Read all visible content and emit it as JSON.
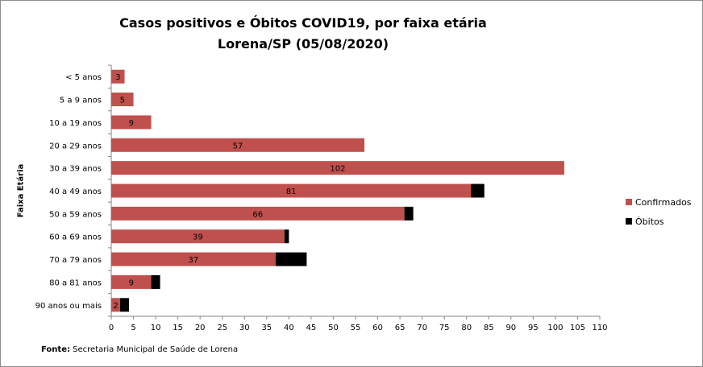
{
  "chart_data": {
    "type": "bar",
    "orientation": "horizontal",
    "stacked": true,
    "title": "Casos positivos  e Óbitos COVID19, por faixa etária",
    "subtitle": "Lorena/SP (05/08/2020)",
    "ylabel": "Faixa Etária",
    "xlabel": "",
    "xlim": [
      0,
      110
    ],
    "xticks": [
      0,
      5,
      10,
      15,
      20,
      25,
      30,
      35,
      40,
      45,
      50,
      55,
      60,
      65,
      70,
      75,
      80,
      85,
      90,
      95,
      100,
      105,
      110
    ],
    "grid": false,
    "legend_position": "right",
    "categories": [
      "< 5 anos",
      "5 a 9 anos",
      "10 a 19 anos",
      "20 a 29 anos",
      "30 a 39 anos",
      "40 a 49 anos",
      "50 a 59 anos",
      "60 a 69 anos",
      "70 a 79 anos",
      "80 a 81 anos",
      "90 anos ou mais"
    ],
    "series": [
      {
        "name": "Confirmados",
        "color": "#c0504d",
        "values": [
          3,
          5,
          9,
          57,
          102,
          81,
          66,
          39,
          37,
          9,
          2
        ]
      },
      {
        "name": "Óbitos",
        "color": "#000000",
        "values": [
          0,
          0,
          0,
          0,
          0,
          3,
          2,
          1,
          7,
          2,
          2
        ]
      }
    ]
  },
  "source": {
    "label": "Fonte:",
    "text": " Secretaria Municipal de Saúde de Lorena"
  }
}
